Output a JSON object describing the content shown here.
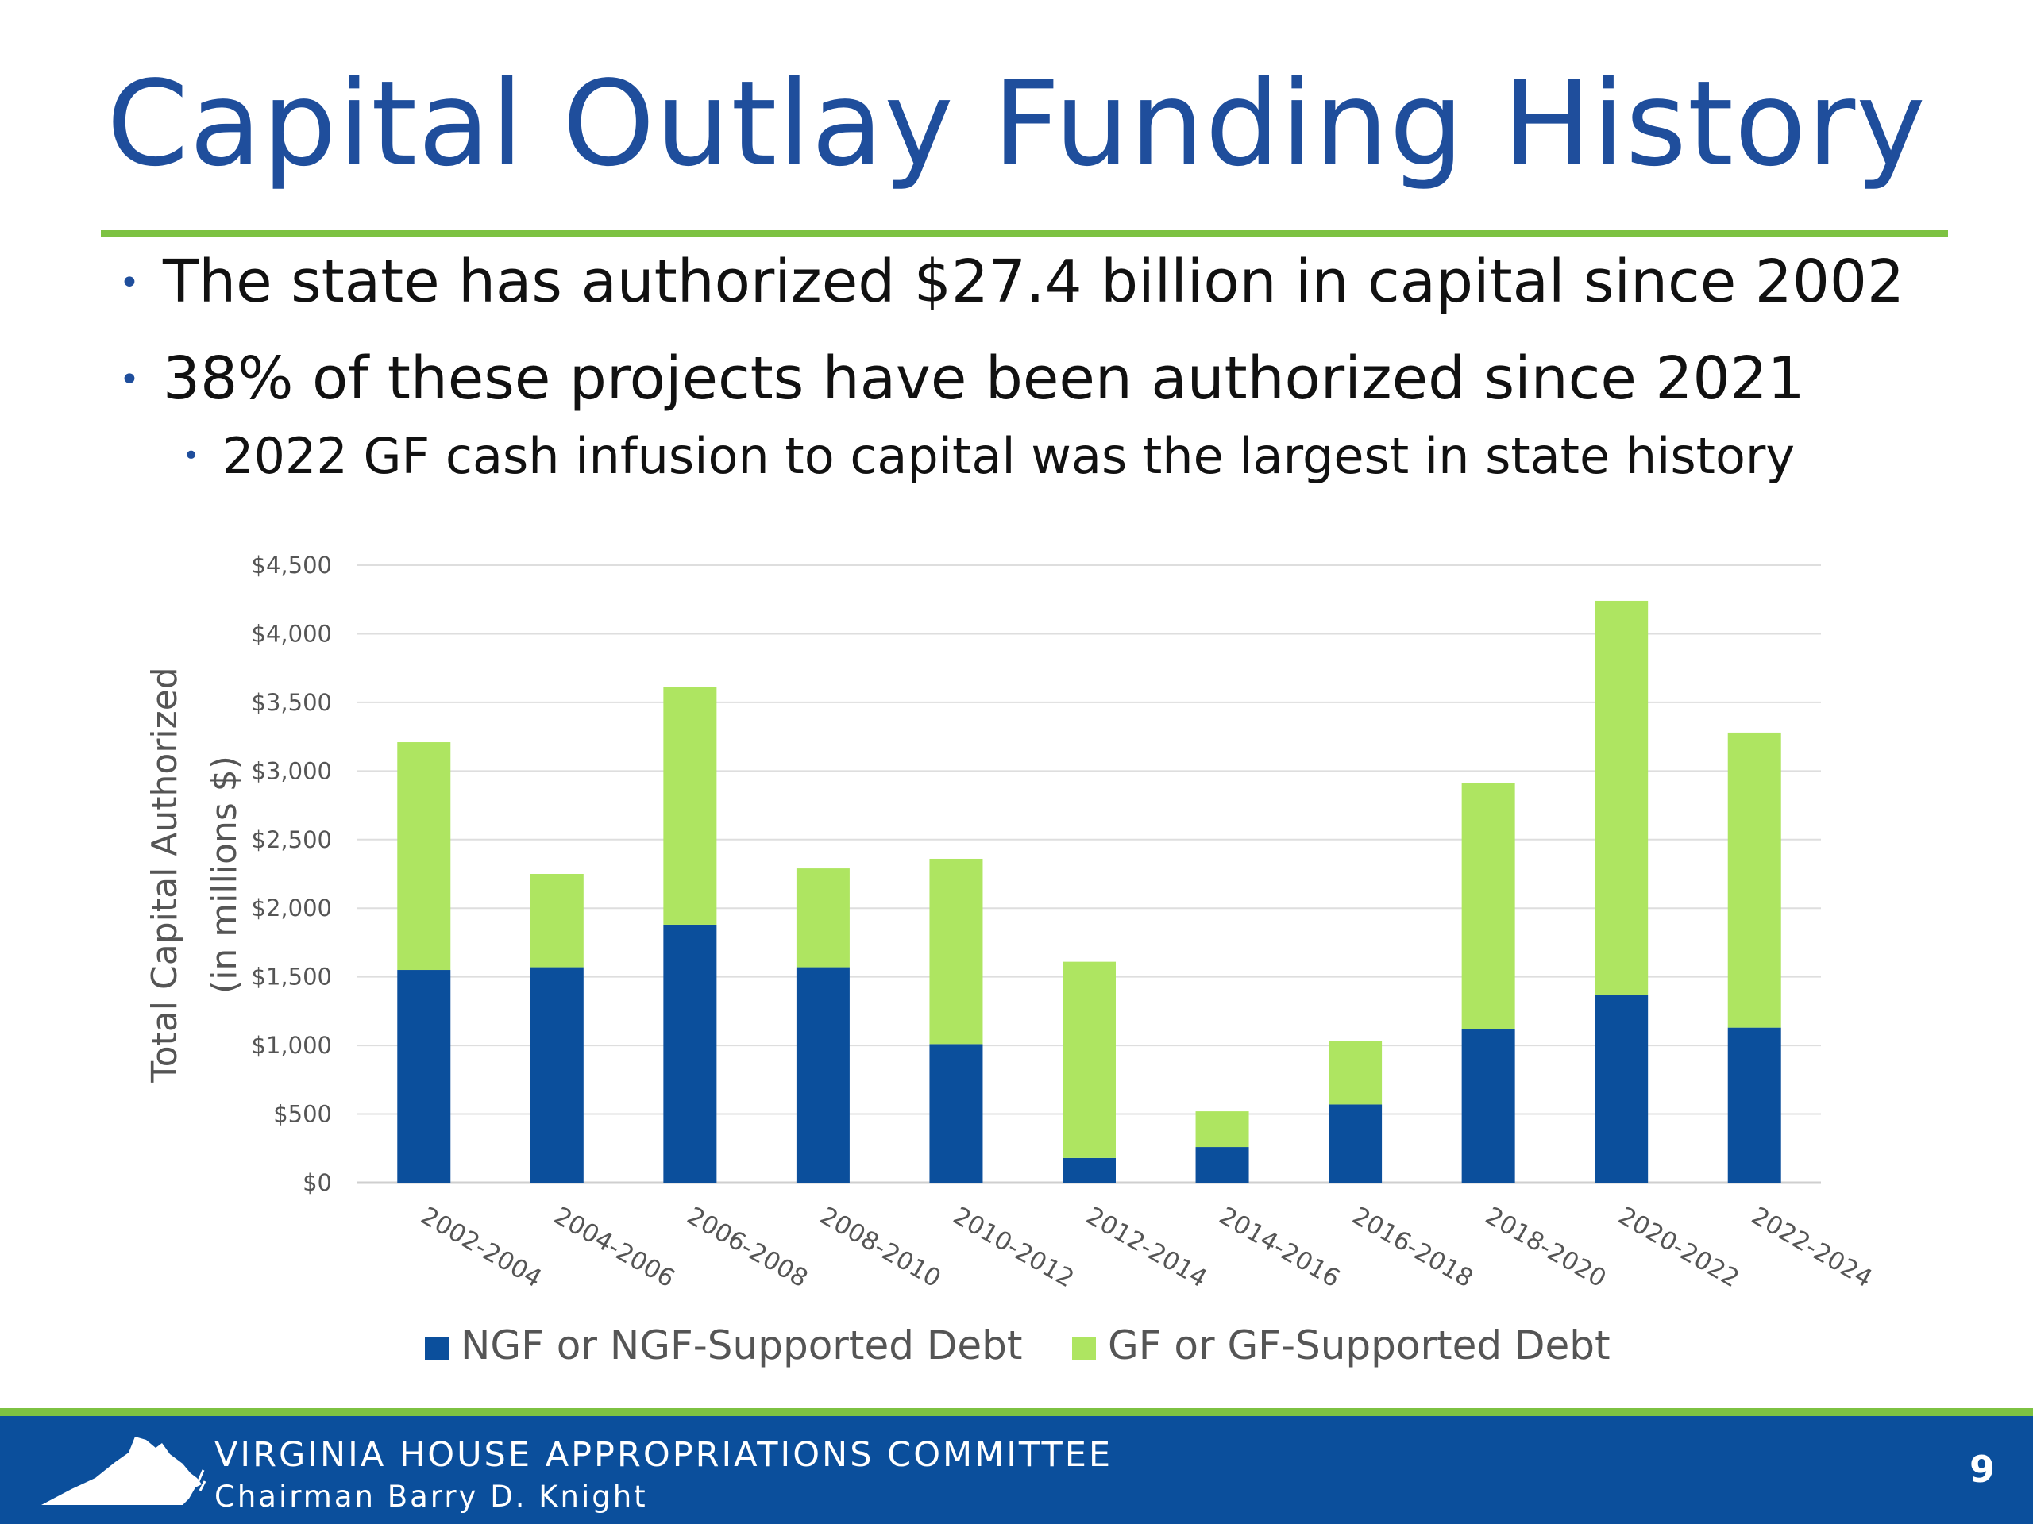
{
  "slide": {
    "title": "Capital Outlay Funding History",
    "bullets": [
      "The state has authorized $27.4 billion in capital since 2002",
      "38% of these projects have been authorized since 2021"
    ],
    "sub_bullets": [
      "2022 GF cash infusion to capital was the largest in state history"
    ],
    "bullet_marker": "•"
  },
  "footer": {
    "committee": "VIRGINIA HOUSE APPROPRIATIONS COMMITTEE",
    "chairman": "Chairman Barry D. Knight",
    "page_number": "9",
    "logo_icon": "virginia-state-outline-icon"
  },
  "colors": {
    "title": "#1f4e9c",
    "accent_rule": "#7dc242",
    "footer_bg": "#0b4f9c",
    "ngf_series": "#0b4f9c",
    "gf_series": "#aee561"
  },
  "chart_data": {
    "type": "bar",
    "stacked": true,
    "categories": [
      "2002-2004",
      "2004-2006",
      "2006-2008",
      "2008-2010",
      "2010-2012",
      "2012-2014",
      "2014-2016",
      "2016-2018",
      "2018-2020",
      "2020-2022",
      "2022-2024"
    ],
    "series": [
      {
        "name": "NGF or NGF-Supported Debt",
        "color": "#0b4f9c",
        "values": [
          1550,
          1570,
          1880,
          1570,
          1010,
          180,
          260,
          570,
          1120,
          1370,
          1130
        ]
      },
      {
        "name": "GF or GF-Supported Debt",
        "color": "#aee561",
        "values": [
          1660,
          680,
          1730,
          720,
          1350,
          1430,
          260,
          460,
          1790,
          2870,
          2150
        ]
      }
    ],
    "ylabel": "Total Capital Authorized",
    "ylabel_units": "(in millions $)",
    "xlabel": "",
    "ylim": [
      0,
      4500
    ],
    "yticks": [
      0,
      500,
      1000,
      1500,
      2000,
      2500,
      3000,
      3500,
      4000,
      4500
    ],
    "ytick_labels": [
      "$0",
      "$500",
      "$1,000",
      "$1,500",
      "$2,000",
      "$2,500",
      "$3,000",
      "$3,500",
      "$4,000",
      "$4,500"
    ],
    "grid": true,
    "legend_position": "bottom"
  }
}
